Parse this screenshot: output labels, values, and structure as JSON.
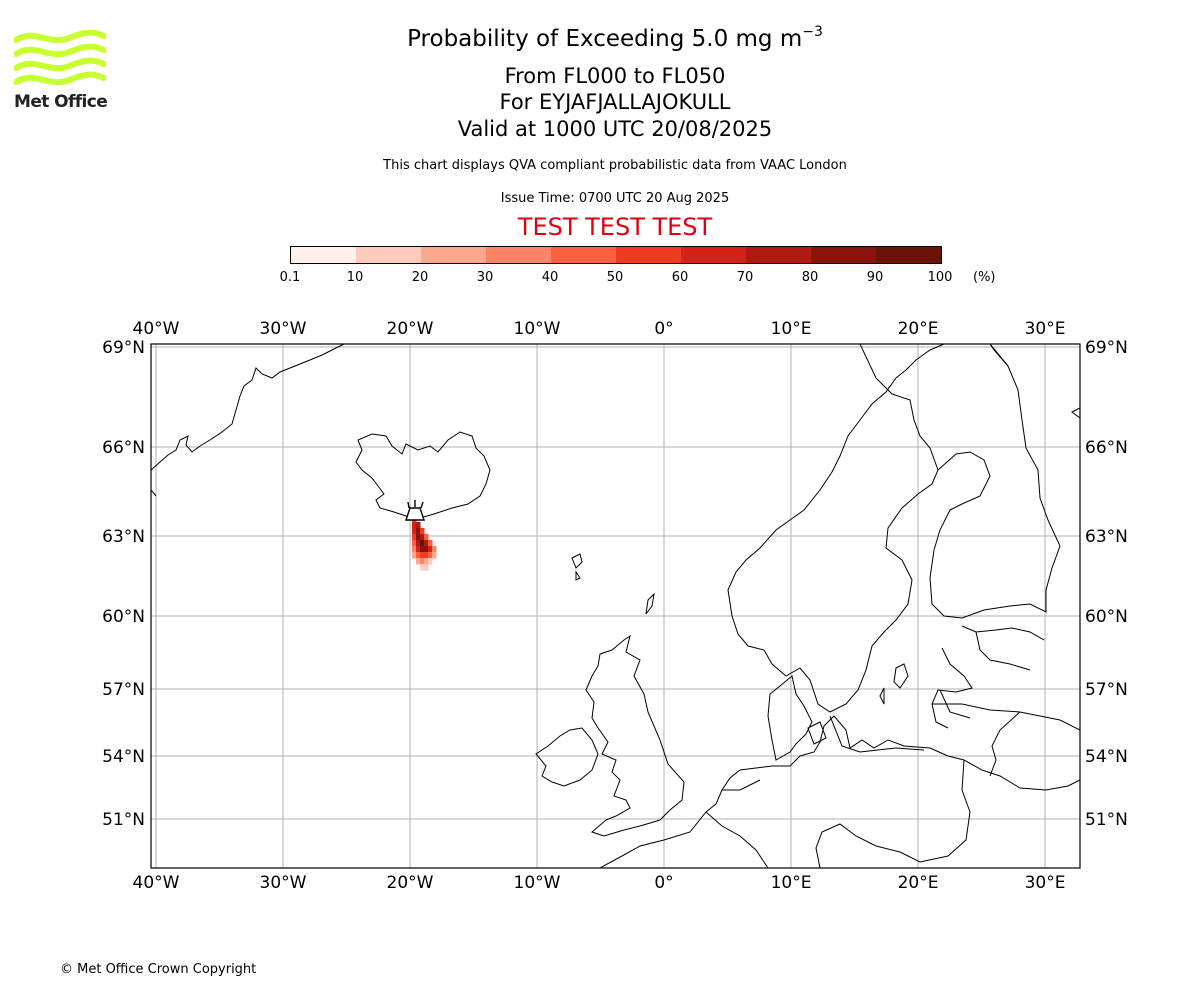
{
  "logo": {
    "text": "Met Office",
    "icon": "met-office-waves-logo",
    "color": "#c8ff2e"
  },
  "title": {
    "line1_main": "Probability of Exceeding 5.0 mg m",
    "line1_sup": "−3",
    "line2": "From FL000 to FL050",
    "line3": "For EYJAFJALLAJOKULL",
    "line4": "Valid at 1000 UTC 20/08/2025"
  },
  "subtitle": "This chart displays QVA compliant probabilistic data from VAAC London",
  "issue_time": "Issue Time: 0700 UTC 20 Aug 2025",
  "test_banner": "TEST TEST TEST",
  "colorbar": {
    "ticks": [
      "0.1",
      "10",
      "20",
      "30",
      "40",
      "50",
      "60",
      "70",
      "80",
      "90",
      "100"
    ],
    "unit": "(%)",
    "colors": [
      "#fff0eb",
      "#fdccbd",
      "#fca88f",
      "#fc8466",
      "#fb6040",
      "#f03a22",
      "#d42316",
      "#b01a10",
      "#8a140c",
      "#6b1208"
    ]
  },
  "map": {
    "lon_labels": [
      "40°W",
      "30°W",
      "20°W",
      "10°W",
      "0°",
      "10°E",
      "20°E",
      "30°E"
    ],
    "lat_labels": [
      "69°N",
      "66°N",
      "63°N",
      "60°N",
      "57°N",
      "54°N",
      "51°N"
    ],
    "volcano_icon": "volcano-icon"
  },
  "copyright": "© Met Office Crown Copyright"
}
